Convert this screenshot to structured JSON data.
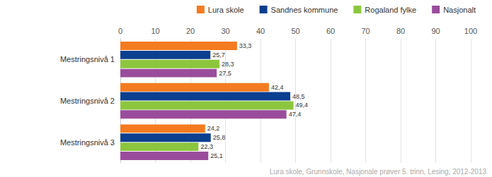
{
  "chart_data": {
    "type": "bar",
    "orientation": "horizontal",
    "categories": [
      "Mestringsnivå 1",
      "Mestringsnivå 2",
      "Mestringsnivå 3"
    ],
    "series": [
      {
        "name": "Lura skole",
        "color": "#f47b20",
        "values": [
          33.3,
          42.4,
          24.2
        ],
        "value_labels": [
          "33,3",
          "42,4",
          "24,2"
        ]
      },
      {
        "name": "Sandnes kommune",
        "color": "#0b3f8f",
        "values": [
          25.7,
          48.5,
          25.8
        ],
        "value_labels": [
          "25,7",
          "48,5",
          "25,8"
        ]
      },
      {
        "name": "Rogaland fylke",
        "color": "#8cc63e",
        "values": [
          28.3,
          49.4,
          22.3
        ],
        "value_labels": [
          "28,3",
          "49,4",
          "22,3"
        ]
      },
      {
        "name": "Nasjonalt",
        "color": "#9a4c9c",
        "values": [
          27.5,
          47.4,
          25.1
        ],
        "value_labels": [
          "27,5",
          "47,4",
          "25,1"
        ]
      }
    ],
    "xlim": [
      0,
      100
    ],
    "xticks": [
      0,
      10,
      20,
      30,
      40,
      50,
      60,
      70,
      80,
      90,
      100
    ],
    "grid": true,
    "legend": "top",
    "data_labels": true,
    "annotations": [
      "Lura skole, Grunnskole, Nasjonale prøver 5. trinn, Lesing, 2012-2013"
    ]
  }
}
